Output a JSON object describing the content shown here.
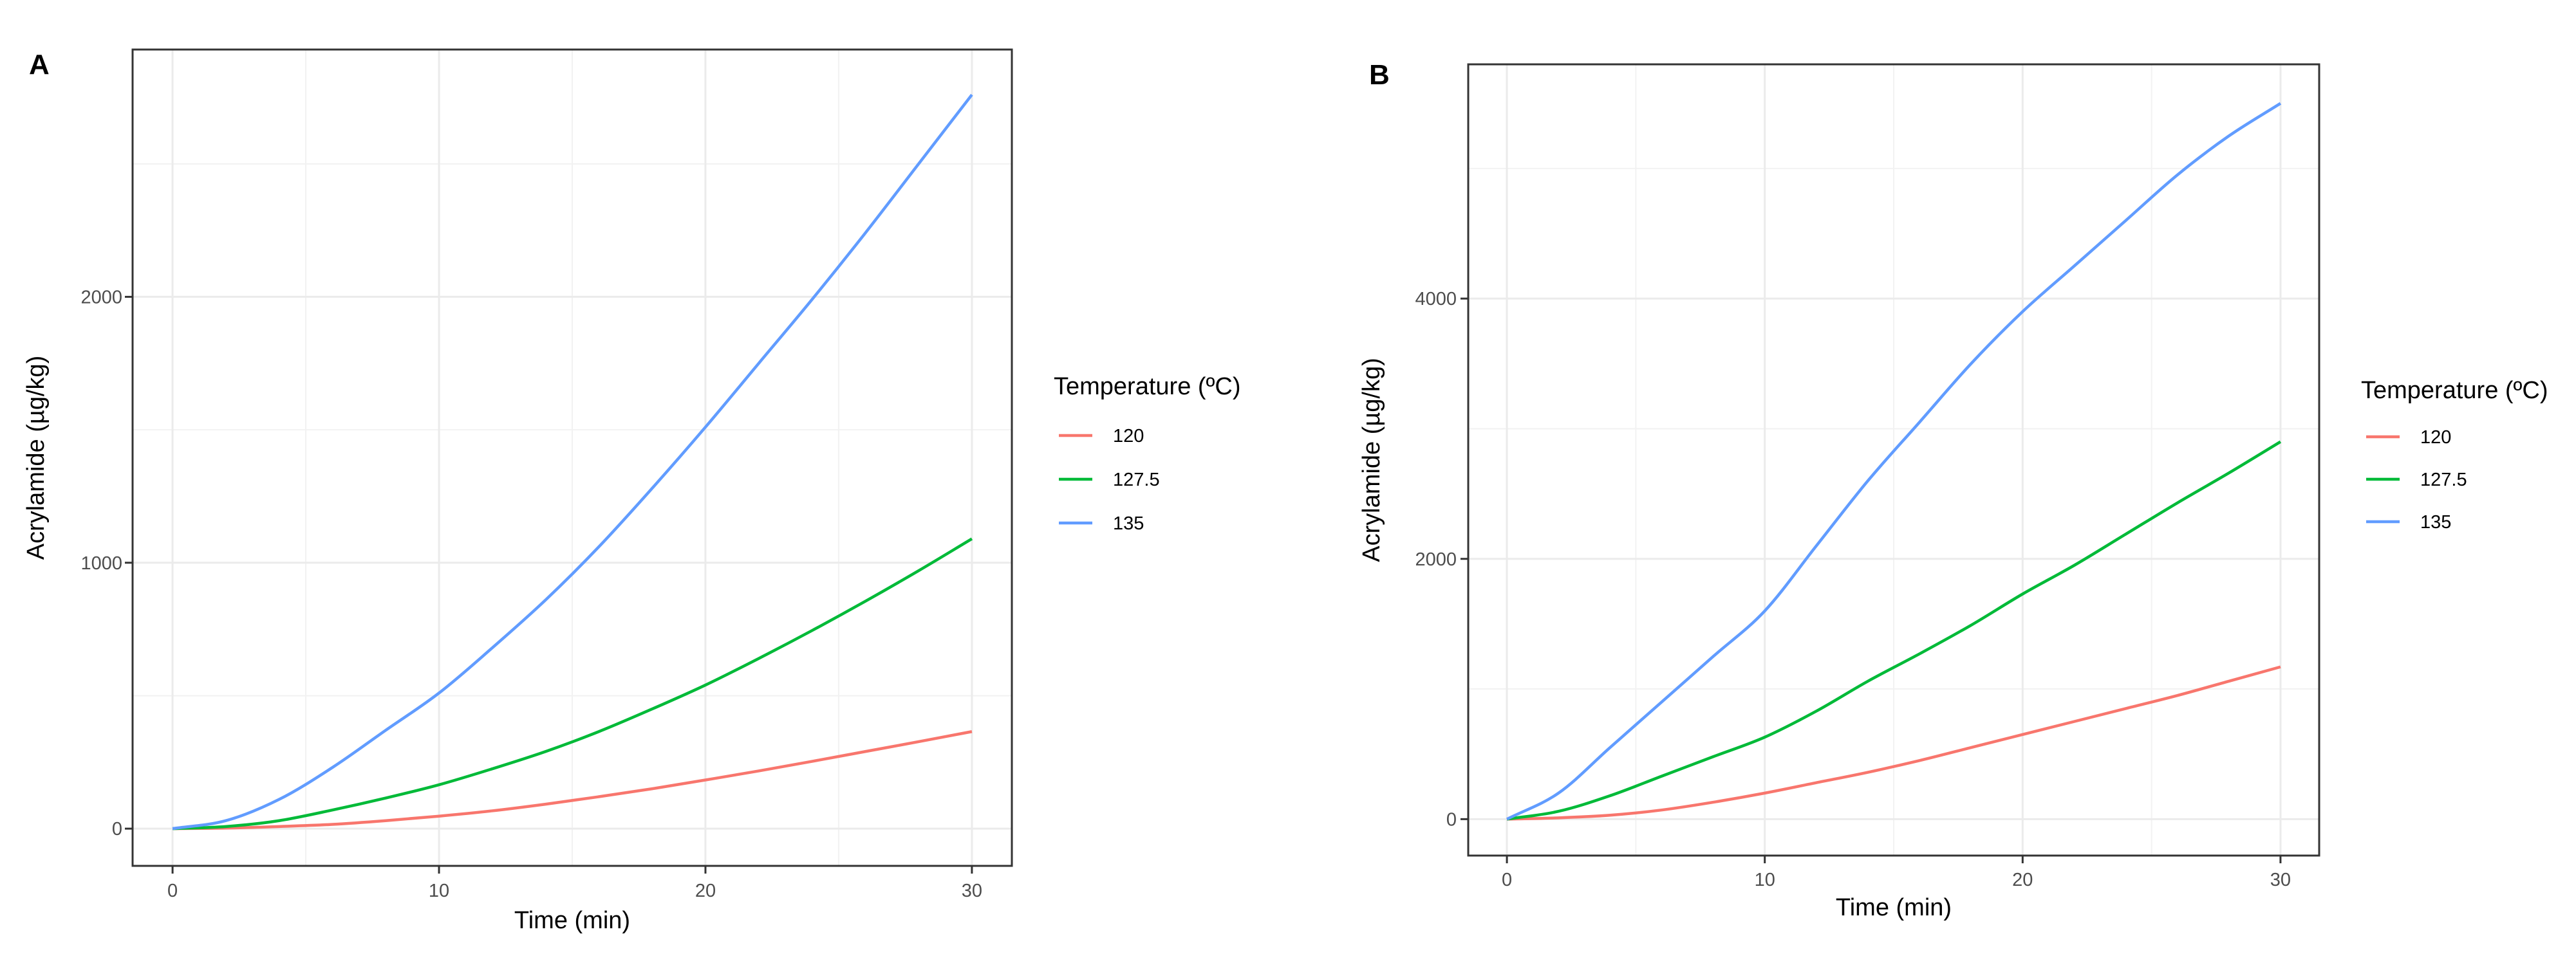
{
  "chart_data": [
    {
      "type": "line",
      "panel_label": "A",
      "xlabel": "Time (min)",
      "ylabel": "Acrylamide (µg/kg)",
      "xlim": [
        -1.5,
        31.5
      ],
      "ylim": [
        -140,
        2930
      ],
      "x_ticks": [
        0,
        10,
        20,
        30
      ],
      "x_tick_labels": [
        "0",
        "10",
        "20",
        "30"
      ],
      "y_ticks": [
        0,
        1000,
        2000
      ],
      "y_tick_labels": [
        "0",
        "1000",
        "2000"
      ],
      "grid": true,
      "legend": {
        "title": "Temperature (ºC)",
        "position": "right"
      },
      "x": [
        0,
        2,
        4,
        6,
        8,
        10,
        12,
        14,
        16,
        18,
        20,
        22,
        24,
        26,
        28,
        30
      ],
      "series": [
        {
          "name": "120",
          "color": "#F8766D",
          "values": [
            0,
            2,
            8,
            16,
            30,
            47,
            67,
            92,
            120,
            150,
            183,
            217,
            253,
            290,
            327,
            365
          ]
        },
        {
          "name": "127.5",
          "color": "#00BA38",
          "values": [
            0,
            8,
            30,
            70,
            115,
            165,
            225,
            290,
            365,
            450,
            540,
            640,
            745,
            855,
            970,
            1090
          ]
        },
        {
          "name": "135",
          "color": "#619CFF",
          "values": [
            0,
            30,
            110,
            230,
            370,
            510,
            680,
            860,
            1060,
            1280,
            1510,
            1750,
            1990,
            2240,
            2500,
            2760
          ]
        }
      ]
    },
    {
      "type": "line",
      "panel_label": "B",
      "xlabel": "Time (min)",
      "ylabel": "Acrylamide (µg/kg)",
      "xlim": [
        -1.5,
        31.5
      ],
      "ylim": [
        -280,
        5800
      ],
      "x_ticks": [
        0,
        10,
        20,
        30
      ],
      "x_tick_labels": [
        "0",
        "10",
        "20",
        "30"
      ],
      "y_ticks": [
        0,
        2000,
        4000
      ],
      "y_tick_labels": [
        "0",
        "2000",
        "4000"
      ],
      "grid": true,
      "legend": {
        "title": "Temperature (ºC)",
        "position": "right"
      },
      "x": [
        0,
        2,
        4,
        6,
        8,
        10,
        12,
        14,
        16,
        18,
        20,
        22,
        24,
        26,
        28,
        30
      ],
      "series": [
        {
          "name": "120",
          "color": "#F8766D",
          "values": [
            0,
            10,
            30,
            70,
            130,
            200,
            280,
            360,
            450,
            550,
            650,
            750,
            850,
            950,
            1060,
            1170
          ]
        },
        {
          "name": "127.5",
          "color": "#00BA38",
          "values": [
            0,
            60,
            180,
            330,
            480,
            630,
            830,
            1060,
            1270,
            1490,
            1730,
            1950,
            2190,
            2430,
            2660,
            2900
          ]
        },
        {
          "name": "135",
          "color": "#619CFF",
          "values": [
            0,
            200,
            550,
            900,
            1250,
            1600,
            2100,
            2600,
            3050,
            3500,
            3900,
            4250,
            4600,
            4950,
            5250,
            5500
          ]
        }
      ]
    }
  ]
}
